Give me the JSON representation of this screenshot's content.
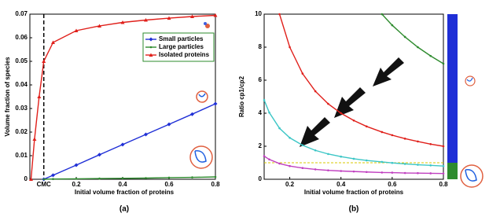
{
  "chart_data": [
    {
      "type": "line",
      "caption": "(a)",
      "x_label": "Initial volume fraction of proteins",
      "y_label": "Volume fraction of species",
      "x": [
        0.005,
        0.02,
        0.04,
        0.06,
        0.1,
        0.2,
        0.3,
        0.4,
        0.5,
        0.6,
        0.7,
        0.8
      ],
      "series": [
        {
          "name": "Small particles",
          "color": "#1f2fd6",
          "marker": "diamond",
          "values": [
            null,
            null,
            null,
            0,
            0.0017,
            0.006,
            0.0104,
            0.0147,
            0.019,
            0.0233,
            0.0276,
            0.032
          ]
        },
        {
          "name": "Large particles",
          "color": "#2e8b2e",
          "marker": "dot",
          "values": [
            null,
            null,
            null,
            0,
            0.0001,
            0.0002,
            0.0003,
            0.0004,
            0.0005,
            0.0007,
            0.0008,
            0.001
          ]
        },
        {
          "name": "Isolated proteins",
          "color": "#e0201b",
          "marker": "triangle",
          "values": [
            0,
            0.017,
            0.035,
            0.05,
            0.058,
            0.063,
            0.065,
            0.0665,
            0.0675,
            0.0683,
            0.069,
            0.0695
          ]
        }
      ],
      "annotations": [
        {
          "text": "CMC",
          "x": 0.06
        }
      ],
      "xlim": [
        0,
        0.8
      ],
      "xticks": [
        0.2,
        0.4,
        0.6,
        0.8
      ],
      "ylim": [
        0,
        0.07
      ],
      "yticks": [
        0,
        0.01,
        0.02,
        0.03,
        0.04,
        0.05,
        0.06,
        0.07
      ],
      "legend": "upper-right"
    },
    {
      "type": "line",
      "caption": "(b)",
      "x_label": "Initial volume fraction of proteins",
      "y_label": "Ratio cp1/cp2",
      "x": [
        0.1,
        0.12,
        0.16,
        0.2,
        0.25,
        0.3,
        0.35,
        0.4,
        0.45,
        0.5,
        0.56,
        0.6,
        0.65,
        0.7,
        0.75,
        0.8
      ],
      "series": [
        {
          "color": "#e0201b",
          "marker": "dot",
          "values": [
            null,
            null,
            10,
            8,
            6.4,
            5.33,
            4.57,
            4,
            3.56,
            3.2,
            2.86,
            2.67,
            2.46,
            2.29,
            2.13,
            2
          ]
        },
        {
          "color": "#3cc6c6",
          "marker": "dot",
          "values": [
            4.8,
            4.04,
            3.09,
            2.51,
            2.06,
            1.75,
            1.53,
            1.37,
            1.24,
            1.14,
            1.05,
            0.99,
            0.93,
            0.88,
            0.84,
            0.8
          ]
        },
        {
          "color": "#c040c0",
          "marker": "dot",
          "values": [
            1.4,
            1.2,
            0.95,
            0.8,
            0.68,
            0.6,
            0.54,
            0.5,
            0.47,
            0.44,
            0.41,
            0.4,
            0.38,
            0.37,
            0.36,
            0.35
          ]
        },
        {
          "color": "#2e8b2e",
          "marker": "dot",
          "values": [
            null,
            null,
            null,
            null,
            null,
            null,
            null,
            null,
            null,
            null,
            10,
            9.33,
            8.62,
            8,
            7.47,
            7
          ]
        }
      ],
      "reference_lines": [
        {
          "value": 1,
          "color": "#d8c800"
        }
      ],
      "bands": [
        {
          "from": 1,
          "to": 10,
          "color": "#1f2fd6"
        },
        {
          "from": 0,
          "to": 1,
          "color": "#2e8b2e"
        }
      ],
      "xlim": [
        0.1,
        0.8
      ],
      "xticks": [
        0.2,
        0.4,
        0.6,
        0.8
      ],
      "ylim": [
        0,
        10
      ],
      "yticks": [
        0,
        2,
        4,
        6,
        8,
        10
      ]
    }
  ]
}
